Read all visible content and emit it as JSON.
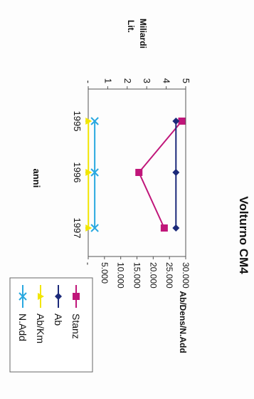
{
  "chart_data": {
    "type": "line",
    "title": "Volturno CM4",
    "xlabel": "anni",
    "categories": [
      "1995",
      "1996",
      "1997"
    ],
    "left_axis": {
      "label": "Ab/Dens/N.Add",
      "ticks": [
        "-",
        "5.000",
        "10.000",
        "15.000",
        "20.000",
        "25.000",
        "30.000"
      ],
      "ylim": [
        0,
        30000
      ]
    },
    "right_axis": {
      "label_line1": "Lit.",
      "label_line2": "Miliardi",
      "ticks": [
        "-",
        "1",
        "2",
        "3",
        "4",
        "5"
      ],
      "ylim": [
        0,
        5
      ]
    },
    "series": [
      {
        "name": "Stanz",
        "axis": "right",
        "color": "#c0167a",
        "marker": "square",
        "values": [
          4.8,
          2.6,
          3.9
        ]
      },
      {
        "name": "Ab",
        "axis": "left",
        "color": "#1c2a7a",
        "marker": "diamond",
        "values": [
          27000,
          27000,
          27000
        ]
      },
      {
        "name": "Ab/Km",
        "axis": "left",
        "color": "#f2e600",
        "marker": "triangle",
        "values": [
          50,
          50,
          50
        ]
      },
      {
        "name": "N.Add",
        "axis": "left",
        "color": "#29a8e0",
        "marker": "x",
        "values": [
          2000,
          2000,
          2000
        ]
      }
    ],
    "legend_position": "bottom-left",
    "grid": false
  }
}
